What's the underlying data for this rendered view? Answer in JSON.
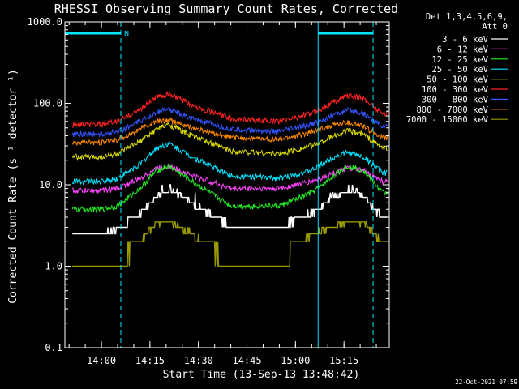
{
  "chart_data": {
    "type": "line",
    "title": "RHESSI Observing Summary Count Rates, Corrected",
    "xlabel": "Start Time (13-Sep-13 13:48:42)",
    "ylabel": "Corrected Count Rate (s⁻¹ detector⁻¹)",
    "y_scale": "log",
    "ylim": [
      0.1,
      1000
    ],
    "xlim": [
      "13:48:42",
      "15:29:00"
    ],
    "x_ticks": [
      "14:00",
      "14:15",
      "14:30",
      "14:45",
      "15:00",
      "15:15"
    ],
    "y_ticks": [
      "0.1",
      "1.0",
      "10.0",
      "100.0",
      "1000.0"
    ],
    "legend_header": [
      "Det 1,3,4,5,6,9,",
      "Att 0"
    ],
    "legend_position": "outside-right",
    "grid": false,
    "timestamp": "22-Oct-2021 07:59",
    "annotations": [
      {
        "type": "night-bar",
        "start": "13:48:42",
        "end": "14:06:00",
        "label": "N"
      },
      {
        "type": "night-bar",
        "start": "15:07:00",
        "end": "15:24:00",
        "label": ""
      }
    ],
    "vertical_lines": [
      {
        "time": "13:48:42",
        "style": "solid"
      },
      {
        "time": "14:06:00",
        "style": "dashed"
      },
      {
        "time": "15:07:00",
        "style": "solid"
      },
      {
        "time": "15:24:00",
        "style": "dashed"
      }
    ],
    "series_time_points": [
      "13:50",
      "14:00",
      "14:05",
      "14:12",
      "14:17",
      "14:21",
      "14:28",
      "14:40",
      "14:55",
      "15:05",
      "15:12",
      "15:16",
      "15:21",
      "15:27"
    ],
    "series": [
      {
        "name": "3 - 6 keV",
        "color": "#ffffff",
        "values": [
          2.5,
          2.5,
          2.8,
          4.5,
          7,
          9,
          6,
          3,
          3,
          4.5,
          7,
          8.5,
          7,
          4
        ]
      },
      {
        "name": "6 - 12 keV",
        "color": "#ff44ff",
        "values": [
          8.5,
          8.5,
          9,
          12,
          16,
          17,
          13,
          9,
          9,
          11,
          14,
          16,
          15,
          11
        ]
      },
      {
        "name": "12 - 25 keV",
        "color": "#22ee22",
        "values": [
          5,
          5,
          5.5,
          9,
          15,
          17,
          11,
          5.5,
          5.5,
          8,
          13,
          17,
          15,
          8
        ]
      },
      {
        "name": "25 - 50 keV",
        "color": "#00e5ff",
        "values": [
          11,
          11,
          12,
          18,
          28,
          32,
          22,
          13,
          12,
          15,
          22,
          25,
          22,
          14
        ]
      },
      {
        "name": "50 - 100 keV",
        "color": "#dddd00",
        "values": [
          22,
          22,
          24,
          34,
          48,
          55,
          40,
          26,
          24,
          30,
          40,
          46,
          42,
          28
        ]
      },
      {
        "name": "100 - 300 keV",
        "color": "#ff2222",
        "values": [
          55,
          55,
          60,
          85,
          120,
          130,
          95,
          65,
          60,
          75,
          105,
          125,
          115,
          75
        ]
      },
      {
        "name": "300 - 800 keV",
        "color": "#3355ff",
        "values": [
          42,
          42,
          45,
          60,
          78,
          85,
          65,
          48,
          45,
          55,
          72,
          82,
          75,
          52
        ]
      },
      {
        "name": "800 - 7000 keV",
        "color": "#ff8800",
        "values": [
          33,
          33,
          36,
          48,
          60,
          62,
          50,
          38,
          36,
          44,
          55,
          58,
          52,
          38
        ]
      },
      {
        "name": "7000 - 15000 keV",
        "color": "#999900",
        "values": [
          1,
          1,
          1,
          2,
          3.5,
          3.5,
          2.5,
          1,
          1,
          2.5,
          3,
          3.5,
          3.5,
          2
        ]
      }
    ]
  }
}
